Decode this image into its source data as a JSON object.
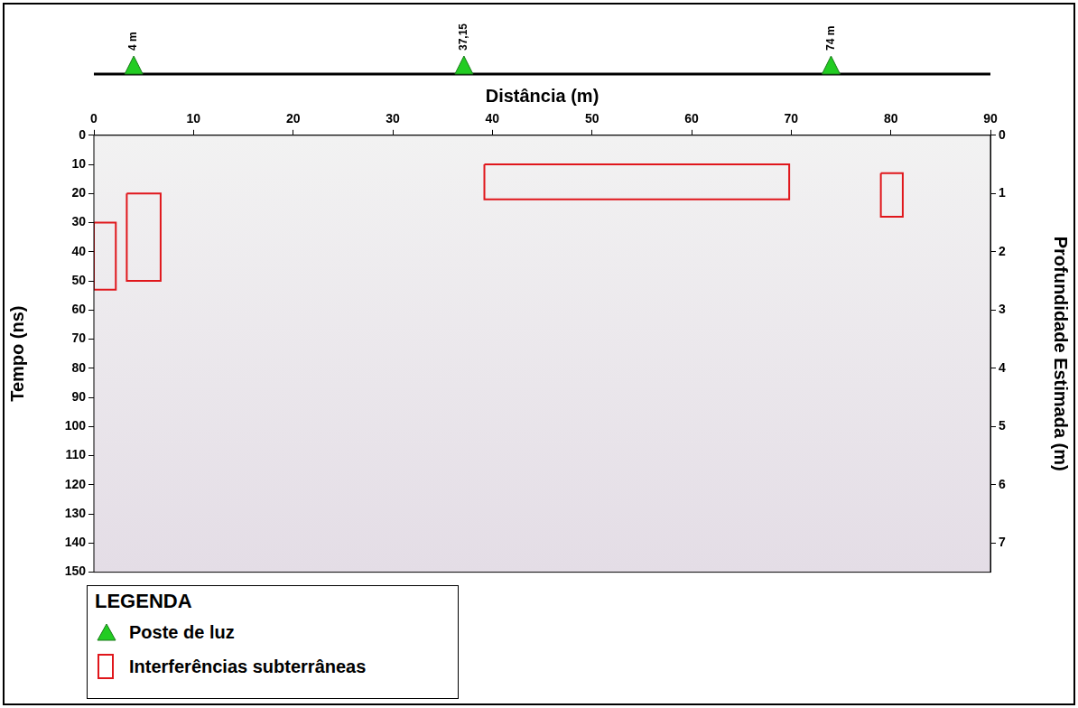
{
  "chart_data": {
    "type": "scatter",
    "xlabel": "Distância (m)",
    "ylabel": "Tempo (ns)",
    "y2label": "Profundidade Estimada (m)",
    "xlim": [
      0,
      90
    ],
    "xticks": [
      0,
      10,
      20,
      30,
      40,
      50,
      60,
      70,
      80,
      90
    ],
    "ylim": [
      150,
      0
    ],
    "yticks": [
      0,
      10,
      20,
      30,
      40,
      50,
      60,
      70,
      80,
      90,
      100,
      110,
      120,
      130,
      140,
      150
    ],
    "y2lim": [
      7.5,
      0
    ],
    "y2ticks": [
      0,
      1,
      2,
      3,
      4,
      5,
      6,
      7
    ],
    "grid": false,
    "legend": "bottom-left",
    "legend_title": "LEGENDA",
    "poles": {
      "name": "Poste de luz",
      "color": "#22cc22",
      "marker": "triangle",
      "x": [
        4,
        37.15,
        74
      ],
      "labels": [
        "4 m",
        "37,15",
        "74 m"
      ]
    },
    "interferences": {
      "name": "Interferências subterrâneas",
      "color": "#e0161b",
      "boxes": [
        {
          "x": [
            0,
            2.2
          ],
          "y": [
            30,
            53
          ]
        },
        {
          "x": [
            3.3,
            6.7
          ],
          "y": [
            20,
            50
          ]
        },
        {
          "x": [
            39.2,
            69.8
          ],
          "y": [
            10,
            22
          ]
        },
        {
          "x": [
            79,
            81.2
          ],
          "y": [
            13,
            28
          ]
        }
      ]
    }
  }
}
